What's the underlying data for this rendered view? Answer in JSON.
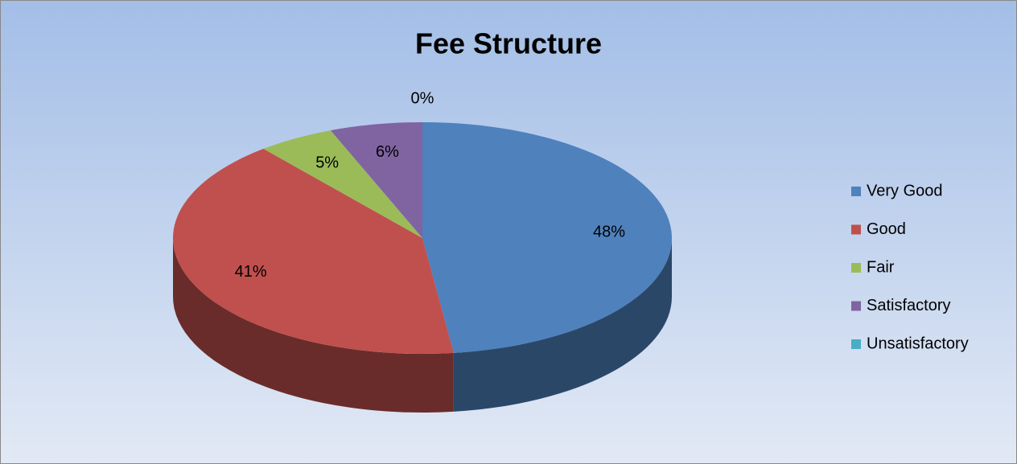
{
  "chart_data": {
    "type": "pie",
    "title": "Fee Structure",
    "categories": [
      "Very Good",
      "Good",
      "Fair",
      "Satisfactory",
      "Unsatisfactory"
    ],
    "values": [
      48,
      41,
      5,
      6,
      0
    ],
    "value_labels": [
      "48%",
      "41%",
      "5%",
      "6%",
      "0%"
    ],
    "colors": [
      "#4f81bd",
      "#c0504d",
      "#9bbb59",
      "#8064a2",
      "#4bacc6"
    ],
    "legend": "right"
  }
}
